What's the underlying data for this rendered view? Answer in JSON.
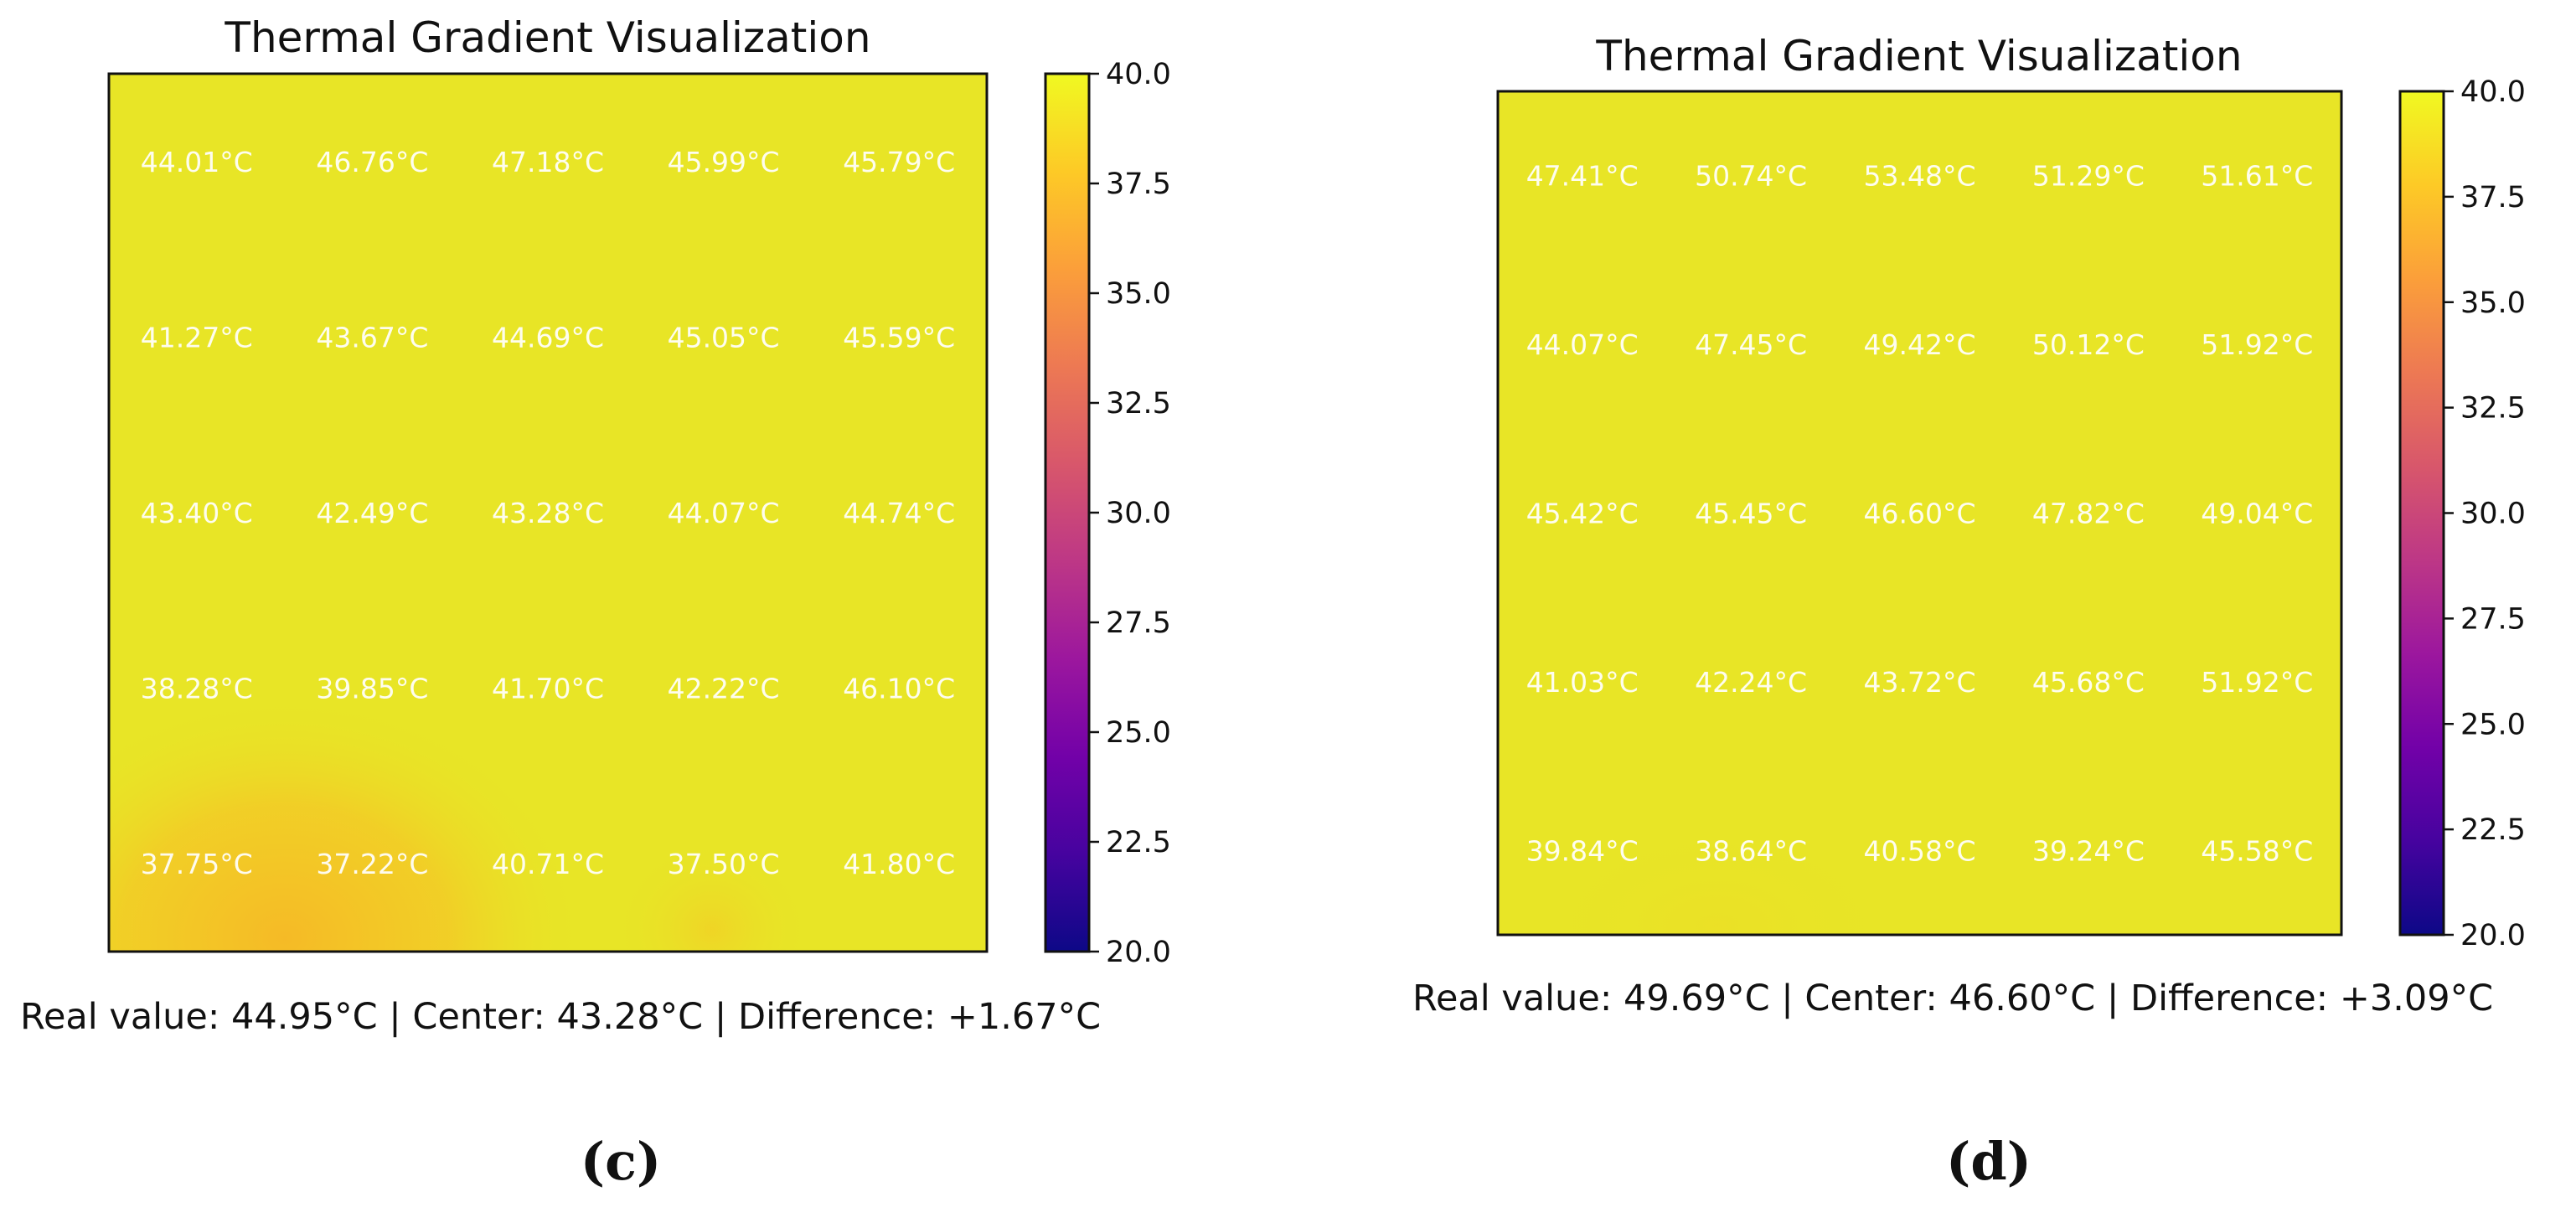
{
  "chart_data": [
    {
      "type": "heatmap",
      "title": "Thermal Gradient Visualization",
      "panel_label": "(c)",
      "cell_values": [
        [
          "44.01°C",
          "46.76°C",
          "47.18°C",
          "45.99°C",
          "45.79°C"
        ],
        [
          "41.27°C",
          "43.67°C",
          "44.69°C",
          "45.05°C",
          "45.59°C"
        ],
        [
          "43.40°C",
          "42.49°C",
          "43.28°C",
          "44.07°C",
          "44.74°C"
        ],
        [
          "38.28°C",
          "39.85°C",
          "41.70°C",
          "42.22°C",
          "46.10°C"
        ],
        [
          "37.75°C",
          "37.22°C",
          "40.71°C",
          "37.50°C",
          "41.80°C"
        ]
      ],
      "colorbar": {
        "range": [
          20.0,
          40.0
        ],
        "ticks": [
          "40.0",
          "37.5",
          "35.0",
          "32.5",
          "30.0",
          "27.5",
          "25.0",
          "22.5",
          "20.0"
        ],
        "colormap": "plasma"
      },
      "caption": "Real value: 44.95°C | Center: 43.28°C | Difference: +1.67°C"
    },
    {
      "type": "heatmap",
      "title": "Thermal Gradient Visualization",
      "panel_label": "(d)",
      "cell_values": [
        [
          "47.41°C",
          "50.74°C",
          "53.48°C",
          "51.29°C",
          "51.61°C"
        ],
        [
          "44.07°C",
          "47.45°C",
          "49.42°C",
          "50.12°C",
          "51.92°C"
        ],
        [
          "45.42°C",
          "45.45°C",
          "46.60°C",
          "47.82°C",
          "49.04°C"
        ],
        [
          "41.03°C",
          "42.24°C",
          "43.72°C",
          "45.68°C",
          "51.92°C"
        ],
        [
          "39.84°C",
          "38.64°C",
          "40.58°C",
          "39.24°C",
          "45.58°C"
        ]
      ],
      "colorbar": {
        "range": [
          20.0,
          40.0
        ],
        "ticks": [
          "40.0",
          "37.5",
          "35.0",
          "32.5",
          "30.0",
          "27.5",
          "25.0",
          "22.5",
          "20.0"
        ],
        "colormap": "plasma"
      },
      "caption": "Real value: 49.69°C | Center: 46.60°C | Difference: +3.09°C"
    }
  ],
  "colors": {
    "plasma_stops": [
      "#0d0887",
      "#46039f",
      "#7201a8",
      "#9c179e",
      "#bd3786",
      "#d8576b",
      "#ed7953",
      "#fb9f3a",
      "#fdca26",
      "#f0f921"
    ],
    "saturated_fill": "#e8e526",
    "warm_patch": "#f6b826",
    "frame": "#111111"
  }
}
